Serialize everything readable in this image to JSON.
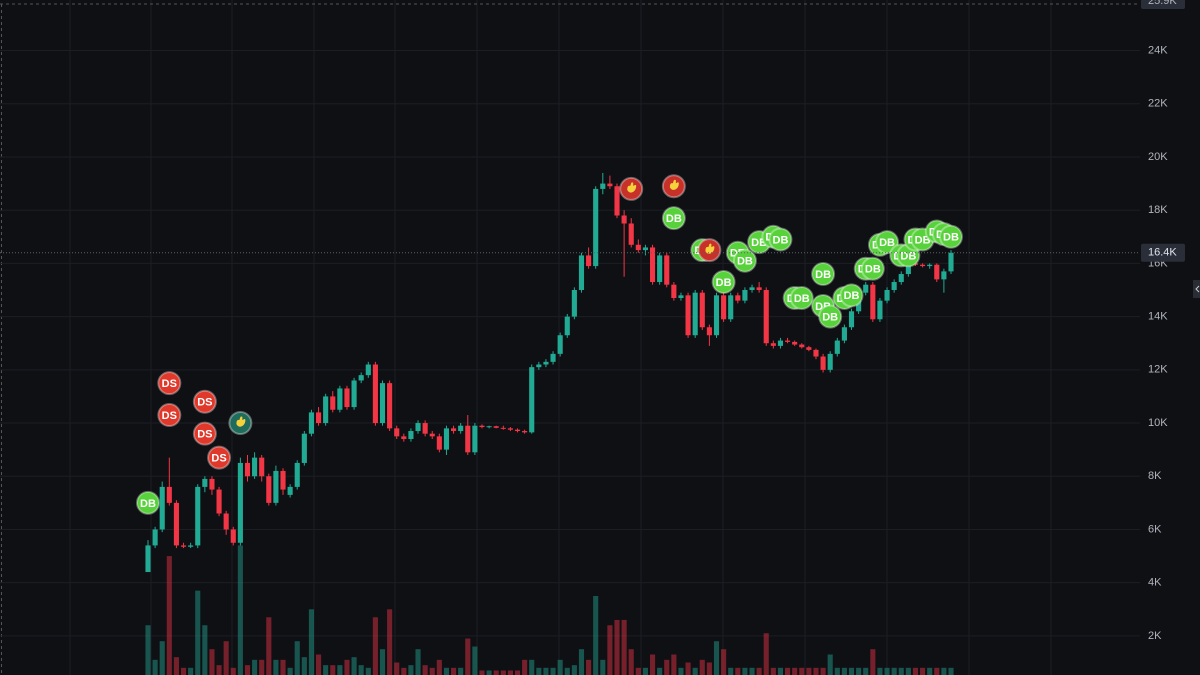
{
  "chart_data": {
    "type": "candlestick",
    "ylim": [
      530,
      25900
    ],
    "yticks": [
      {
        "value": 2000,
        "label": "2K"
      },
      {
        "value": 4000,
        "label": "4K"
      },
      {
        "value": 6000,
        "label": "6K"
      },
      {
        "value": 8000,
        "label": "8K"
      },
      {
        "value": 10000,
        "label": "10K"
      },
      {
        "value": 12000,
        "label": "12K"
      },
      {
        "value": 14000,
        "label": "14K"
      },
      {
        "value": 16000,
        "label": "16K"
      },
      {
        "value": 18000,
        "label": "18K"
      },
      {
        "value": 20000,
        "label": "20K"
      },
      {
        "value": 22000,
        "label": "22K"
      },
      {
        "value": 24000,
        "label": "24K"
      }
    ],
    "scale_top": {
      "value": 25900,
      "label": "25.9K"
    },
    "price_line": {
      "value": 16400,
      "label": "16.4K"
    },
    "grid": true,
    "up_color": "#22ab94",
    "down_color": "#f23645",
    "open": [
      4400,
      5400,
      6000,
      7600,
      7000,
      5400,
      5350,
      5400,
      7600,
      7900,
      7500,
      6600,
      6000,
      5500,
      8500,
      8000,
      8700,
      8000,
      7000,
      8200,
      7300,
      7600,
      8500,
      9600,
      10400,
      10000,
      11000,
      10500,
      11300,
      10600,
      11600,
      11800,
      12200,
      10000,
      11500,
      9800,
      9500,
      9400,
      9700,
      10000,
      9600,
      9500,
      9000,
      9800,
      9700,
      9900,
      8900,
      9900,
      9850,
      9880,
      9820,
      9800,
      9750,
      9700,
      9650,
      12100,
      12200,
      12300,
      12600,
      13300,
      14000,
      15000,
      16300,
      15900,
      18800,
      19000,
      18900,
      17800,
      17500,
      16700,
      16500,
      16600,
      15300,
      16300,
      15200,
      14700,
      14800,
      13300,
      14900,
      13600,
      13300,
      14800,
      13900,
      14800,
      14600,
      15000,
      15100,
      15000,
      13000,
      12900,
      13100,
      13050,
      12950,
      12850,
      12750,
      12500,
      12000,
      12600,
      13100,
      13600,
      14200,
      14900,
      15200,
      13900,
      14600,
      15000,
      15300,
      15600,
      16000,
      15950,
      15900,
      15950,
      15400,
      15700
    ],
    "high": [
      5600,
      6100,
      7800,
      8700,
      7100,
      5500,
      5500,
      7700,
      8000,
      8000,
      7600,
      6700,
      6100,
      8700,
      8800,
      8900,
      8800,
      8100,
      8400,
      8300,
      7700,
      8600,
      9700,
      10500,
      10600,
      11100,
      11200,
      11400,
      11400,
      11700,
      11900,
      12300,
      12300,
      11600,
      11600,
      9900,
      9600,
      9800,
      10100,
      10100,
      9700,
      9600,
      9900,
      9900,
      10000,
      10300,
      10000,
      9950,
      9900,
      9900,
      9900,
      9850,
      9800,
      9750,
      12200,
      12300,
      12400,
      12700,
      13400,
      14100,
      15100,
      16400,
      16600,
      18900,
      19400,
      19300,
      19000,
      18000,
      17700,
      16900,
      16700,
      16700,
      16400,
      16400,
      15300,
      14900,
      14900,
      15000,
      15000,
      13700,
      14900,
      14900,
      14900,
      14900,
      15100,
      15200,
      15300,
      15100,
      13100,
      13200,
      13200,
      13100,
      13000,
      12900,
      12800,
      12600,
      12700,
      13200,
      13700,
      14300,
      15000,
      15300,
      15300,
      14700,
      15100,
      15400,
      15700,
      16100,
      16100,
      16000,
      16000,
      16000,
      15800,
      16500
    ],
    "low": [
      4400,
      5300,
      5900,
      6900,
      5300,
      5300,
      5300,
      5300,
      7400,
      7300,
      6500,
      5800,
      5400,
      5400,
      7800,
      7900,
      7800,
      6900,
      6900,
      7300,
      7200,
      7500,
      8400,
      9500,
      9900,
      9900,
      10400,
      10400,
      10500,
      10500,
      11500,
      11700,
      9900,
      9900,
      9700,
      9400,
      9300,
      9300,
      9600,
      9500,
      9400,
      8900,
      8800,
      9600,
      9600,
      8800,
      8800,
      9800,
      9800,
      9800,
      9750,
      9700,
      9650,
      9600,
      9600,
      12000,
      12100,
      12200,
      12500,
      13200,
      13900,
      14900,
      15800,
      15800,
      18600,
      18800,
      17700,
      15500,
      16600,
      16400,
      16300,
      15200,
      15200,
      15100,
      14600,
      14600,
      13200,
      13200,
      13500,
      12900,
      13200,
      13800,
      13800,
      14500,
      14500,
      14900,
      14900,
      12900,
      12800,
      12800,
      13000,
      12900,
      12800,
      12700,
      12400,
      11900,
      11900,
      12500,
      13000,
      13500,
      14100,
      14800,
      13800,
      13800,
      14500,
      14900,
      15200,
      15500,
      15900,
      15850,
      15800,
      15300,
      14900,
      15600
    ],
    "close": [
      5400,
      6000,
      7600,
      7000,
      5400,
      5350,
      5400,
      7600,
      7900,
      7500,
      6600,
      6000,
      5500,
      8500,
      8000,
      8700,
      8000,
      7000,
      8200,
      7500,
      7600,
      8500,
      9600,
      10400,
      10000,
      11000,
      10500,
      11300,
      10600,
      11600,
      11800,
      12200,
      10000,
      11500,
      9800,
      9500,
      9400,
      9700,
      10000,
      9600,
      9500,
      9000,
      9800,
      9700,
      9900,
      8900,
      9900,
      9850,
      9880,
      9820,
      9800,
      9750,
      9700,
      9650,
      12100,
      12200,
      12300,
      12600,
      13300,
      14000,
      15000,
      16300,
      15900,
      18800,
      19000,
      18900,
      17800,
      17500,
      16700,
      16500,
      16600,
      15300,
      16300,
      15200,
      14700,
      14800,
      13300,
      14900,
      13600,
      13300,
      14800,
      13900,
      14800,
      14600,
      15000,
      15100,
      15000,
      13000,
      12900,
      13100,
      13050,
      12950,
      12850,
      12750,
      12500,
      12000,
      12600,
      13100,
      13600,
      14200,
      14900,
      15200,
      13900,
      14600,
      15000,
      15300,
      15600,
      16000,
      15950,
      15900,
      15950,
      15400,
      15700,
      16400
    ],
    "volume": [
      2400,
      1100,
      1800,
      5000,
      1200,
      800,
      800,
      3700,
      2400,
      1500,
      900,
      1800,
      800,
      5400,
      900,
      1100,
      1100,
      2700,
      1100,
      1100,
      800,
      1800,
      1200,
      3000,
      1300,
      900,
      900,
      900,
      1100,
      1200,
      900,
      800,
      2700,
      1500,
      3000,
      1000,
      800,
      900,
      1500,
      900,
      800,
      1100,
      800,
      800,
      800,
      1900,
      1600,
      700,
      700,
      700,
      700,
      700,
      700,
      1100,
      1100,
      800,
      800,
      800,
      1100,
      800,
      900,
      1500,
      1100,
      3500,
      1100,
      2400,
      2600,
      2600,
      1500,
      800,
      800,
      1300,
      800,
      1100,
      1300,
      800,
      1000,
      800,
      1100,
      1000,
      1800,
      1500,
      800,
      800,
      800,
      800,
      800,
      2100,
      800,
      800,
      800,
      800,
      800,
      800,
      800,
      800,
      1300,
      800,
      800,
      800,
      800,
      800,
      1500,
      800,
      800,
      800,
      800,
      800,
      800,
      800,
      800,
      800,
      800,
      800
    ],
    "markers": [
      {
        "label": "DB",
        "index": 0,
        "value": 7000,
        "color": "#57d23b"
      },
      {
        "label": "DS",
        "index": 3,
        "value": 11500,
        "color": "#e0382a"
      },
      {
        "label": "DS",
        "index": 3,
        "value": 10300,
        "color": "#e0382a"
      },
      {
        "label": "DS",
        "index": 8,
        "value": 10800,
        "color": "#e0382a"
      },
      {
        "label": "DS",
        "index": 8,
        "value": 9600,
        "color": "#e0382a"
      },
      {
        "label": "DS",
        "index": 10,
        "value": 8700,
        "color": "#e0382a"
      },
      {
        "index": 13,
        "value": 10000,
        "color": "#1f6b5c"
      },
      {
        "index": 68,
        "value": 18800,
        "color": "#c8302a"
      },
      {
        "index": 74,
        "value": 18900,
        "color": "#c8302a"
      },
      {
        "label": "DB",
        "index": 74,
        "value": 17700,
        "color": "#57d23b"
      },
      {
        "label": "DB",
        "index": 78,
        "value": 16500,
        "color": "#57d23b"
      },
      {
        "index": 79,
        "value": 16500,
        "color": "#c8302a"
      },
      {
        "label": "DB",
        "index": 81,
        "value": 15300,
        "color": "#57d23b"
      },
      {
        "label": "DB",
        "index": 83,
        "value": 16400,
        "color": "#57d23b"
      },
      {
        "label": "DB",
        "index": 84,
        "value": 16100,
        "color": "#57d23b"
      },
      {
        "label": "DB",
        "index": 86,
        "value": 16800,
        "color": "#57d23b"
      },
      {
        "label": "DB",
        "index": 88,
        "value": 17000,
        "color": "#57d23b"
      },
      {
        "label": "DB",
        "index": 89,
        "value": 16900,
        "color": "#57d23b"
      },
      {
        "label": "DB",
        "index": 91,
        "value": 14700,
        "color": "#57d23b"
      },
      {
        "label": "DB",
        "index": 92,
        "value": 14700,
        "color": "#57d23b"
      },
      {
        "label": "DB",
        "index": 95,
        "value": 15600,
        "color": "#57d23b"
      },
      {
        "label": "DB",
        "index": 95,
        "value": 14400,
        "color": "#57d23b"
      },
      {
        "label": "DB",
        "index": 96,
        "value": 14000,
        "color": "#57d23b"
      },
      {
        "label": "DB",
        "index": 98,
        "value": 14700,
        "color": "#57d23b"
      },
      {
        "label": "DB",
        "index": 99,
        "value": 14800,
        "color": "#57d23b"
      },
      {
        "label": "DB",
        "index": 101,
        "value": 15800,
        "color": "#57d23b"
      },
      {
        "label": "DB",
        "index": 102,
        "value": 15800,
        "color": "#57d23b"
      },
      {
        "label": "DB",
        "index": 103,
        "value": 16700,
        "color": "#57d23b"
      },
      {
        "label": "DB",
        "index": 104,
        "value": 16800,
        "color": "#57d23b"
      },
      {
        "label": "DB",
        "index": 106,
        "value": 16300,
        "color": "#57d23b"
      },
      {
        "label": "DB",
        "index": 107,
        "value": 16300,
        "color": "#57d23b"
      },
      {
        "label": "DB",
        "index": 108,
        "value": 16900,
        "color": "#57d23b"
      },
      {
        "label": "DB",
        "index": 109,
        "value": 16900,
        "color": "#57d23b"
      },
      {
        "label": "DB",
        "index": 111,
        "value": 17200,
        "color": "#57d23b"
      },
      {
        "label": "DB",
        "index": 112,
        "value": 17100,
        "color": "#57d23b"
      },
      {
        "label": "DB",
        "index": 113,
        "value": 17000,
        "color": "#57d23b"
      }
    ]
  }
}
